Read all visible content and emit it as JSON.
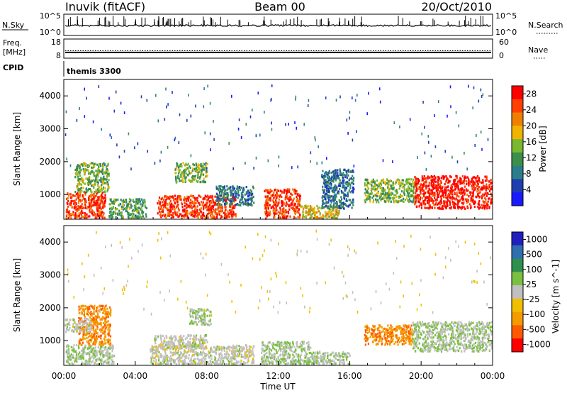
{
  "header": {
    "station": "Inuvik (fitACF)",
    "beam": "Beam 00",
    "date": "20/Oct/2010"
  },
  "noise_panel": {
    "left_label": "N.Sky",
    "right_label": "N.Search",
    "left_ticks": [
      "10^5",
      "10^0"
    ],
    "right_ticks": [
      "10^5",
      "10^0"
    ]
  },
  "freq_panel": {
    "left_label_1": "Freq.",
    "left_label_2": "[MHz]",
    "right_label": "Nave",
    "left_ticks": [
      "18",
      "8"
    ],
    "right_ticks": [
      "60",
      "0"
    ],
    "freq_value_mhz": 11,
    "freq_range": [
      8,
      18
    ]
  },
  "cpid_panel": {
    "label": "CPID",
    "value": "themis 3300"
  },
  "colors": {
    "power": [
      "#1a1aff",
      "#1f3fb0",
      "#2c7d8c",
      "#3c8f4a",
      "#7ab830",
      "#f0b400",
      "#f07f00",
      "#ff4000",
      "#ff0000"
    ],
    "velocity": [
      "#ff0000",
      "#ff5a00",
      "#f59b00",
      "#f0c000",
      "#c0c0c0",
      "#7ac040",
      "#2f8f4f",
      "#2f6fb0",
      "#2020c0"
    ]
  },
  "chart_data": [
    {
      "type": "heatmap",
      "title": "",
      "xlabel": "",
      "ylabel": "Slant Range [km]",
      "xlim": [
        0,
        24
      ],
      "ylim": [
        250,
        4500
      ],
      "x_ticks": [
        "00:00",
        "04:00",
        "08:00",
        "12:00",
        "16:00",
        "20:00",
        "00:00"
      ],
      "y_ticks": [
        1000,
        2000,
        3000,
        4000
      ],
      "colorbar": {
        "label": "Power [dB]",
        "ticks": [
          "4",
          "8",
          "12",
          "16",
          "20",
          "24",
          "28"
        ],
        "range": [
          0,
          30
        ]
      },
      "regions": [
        {
          "t0": 0.1,
          "t1": 2.3,
          "r0": 300,
          "r1": 1100,
          "value": 26
        },
        {
          "t0": 0.6,
          "t1": 2.5,
          "r0": 1100,
          "r1": 2000,
          "value": 14
        },
        {
          "t0": 2.5,
          "t1": 4.6,
          "r0": 300,
          "r1": 900,
          "value": 12
        },
        {
          "t0": 5.2,
          "t1": 9.6,
          "r0": 300,
          "r1": 1000,
          "value": 26
        },
        {
          "t0": 6.2,
          "t1": 8.0,
          "r0": 1400,
          "r1": 2000,
          "value": 14
        },
        {
          "t0": 8.5,
          "t1": 10.6,
          "r0": 700,
          "r1": 1300,
          "value": 8
        },
        {
          "t0": 11.2,
          "t1": 13.2,
          "r0": 300,
          "r1": 1200,
          "value": 26
        },
        {
          "t0": 13.2,
          "t1": 15.4,
          "r0": 300,
          "r1": 700,
          "value": 18
        },
        {
          "t0": 14.4,
          "t1": 16.2,
          "r0": 600,
          "r1": 1800,
          "value": 8
        },
        {
          "t0": 16.8,
          "t1": 19.6,
          "r0": 800,
          "r1": 1500,
          "value": 14
        },
        {
          "t0": 19.6,
          "t1": 24.0,
          "r0": 600,
          "r1": 1600,
          "value": 28
        },
        {
          "t0": 0.0,
          "t1": 24.0,
          "r0": 1800,
          "r1": 4400,
          "value": 6
        }
      ]
    },
    {
      "type": "heatmap",
      "title": "",
      "xlabel": "Time UT",
      "ylabel": "Slant Range [km]",
      "xlim": [
        0,
        24
      ],
      "ylim": [
        250,
        4500
      ],
      "x_ticks": [
        "00:00",
        "04:00",
        "08:00",
        "12:00",
        "16:00",
        "20:00",
        "00:00"
      ],
      "y_ticks": [
        1000,
        2000,
        3000,
        4000
      ],
      "colorbar": {
        "label": "Velocity [m s^-1]",
        "ticks": [
          "1000",
          "500",
          "100",
          "25",
          "-25",
          "-100",
          "-500",
          "-1000"
        ],
        "range": [
          -1000,
          1000
        ]
      },
      "regions": [
        {
          "t0": 0.1,
          "t1": 2.8,
          "r0": 300,
          "r1": 900,
          "value": 100
        },
        {
          "t0": 0.8,
          "t1": 2.6,
          "r0": 900,
          "r1": 2100,
          "value": -500
        },
        {
          "t0": 0.0,
          "t1": 1.5,
          "r0": 1300,
          "r1": 1700,
          "value": 0
        },
        {
          "t0": 4.8,
          "t1": 10.6,
          "r0": 300,
          "r1": 900,
          "value": 0
        },
        {
          "t0": 5.0,
          "t1": 8.0,
          "r0": 800,
          "r1": 1200,
          "value": 0
        },
        {
          "t0": 7.0,
          "t1": 8.2,
          "r0": 1500,
          "r1": 2000,
          "value": 100
        },
        {
          "t0": 11.0,
          "t1": 13.8,
          "r0": 300,
          "r1": 1000,
          "value": 100
        },
        {
          "t0": 13.8,
          "t1": 16.0,
          "r0": 300,
          "r1": 700,
          "value": 100
        },
        {
          "t0": 16.8,
          "t1": 19.5,
          "r0": 900,
          "r1": 1500,
          "value": -500
        },
        {
          "t0": 19.5,
          "t1": 24.0,
          "r0": 700,
          "r1": 1600,
          "value": 100
        },
        {
          "t0": 0.0,
          "t1": 24.0,
          "r0": 1800,
          "r1": 4400,
          "value": -100
        }
      ]
    }
  ]
}
